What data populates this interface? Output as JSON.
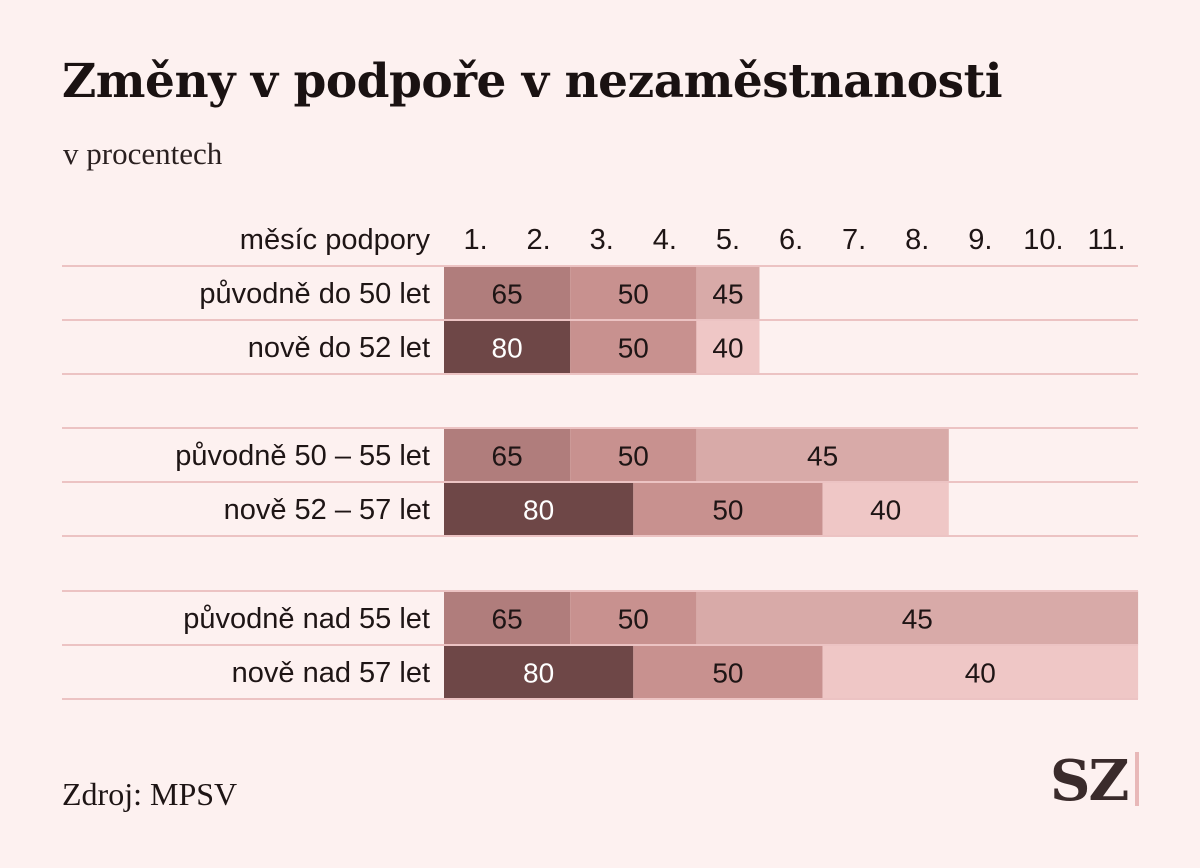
{
  "colors": {
    "background": "#fdf1f0",
    "rule": "#ecc3c3",
    "65": "#b07d7c",
    "80": "#6e4747",
    "50": "#c8918f",
    "45": "#d8aaa8",
    "40": "#efc7c6"
  },
  "chart_data": {
    "type": "table",
    "title": "Změny v podpoře v nezaměstnanosti",
    "subtitle": "v procentech",
    "header_label": "měsíc podpory",
    "months": [
      "1.",
      "2.",
      "3.",
      "4.",
      "5.",
      "6.",
      "7.",
      "8.",
      "9.",
      "10.",
      "11."
    ],
    "groups": [
      {
        "rows": [
          {
            "label": "původně do 50 let",
            "segments": [
              {
                "value": 65,
                "months": 2
              },
              {
                "value": 50,
                "months": 2
              },
              {
                "value": 45,
                "months": 1
              }
            ]
          },
          {
            "label": "nově do 52 let",
            "segments": [
              {
                "value": 80,
                "months": 2
              },
              {
                "value": 50,
                "months": 2
              },
              {
                "value": 40,
                "months": 1
              }
            ]
          }
        ]
      },
      {
        "rows": [
          {
            "label": "původně 50 – 55 let",
            "segments": [
              {
                "value": 65,
                "months": 2
              },
              {
                "value": 50,
                "months": 2
              },
              {
                "value": 45,
                "months": 4
              }
            ]
          },
          {
            "label": "nově 52 – 57 let",
            "segments": [
              {
                "value": 80,
                "months": 3
              },
              {
                "value": 50,
                "months": 3
              },
              {
                "value": 40,
                "months": 2
              }
            ]
          }
        ]
      },
      {
        "rows": [
          {
            "label": "původně nad 55 let",
            "segments": [
              {
                "value": 65,
                "months": 2
              },
              {
                "value": 50,
                "months": 2
              },
              {
                "value": 45,
                "months": 7
              }
            ]
          },
          {
            "label": "nově nad 57 let",
            "segments": [
              {
                "value": 80,
                "months": 3
              },
              {
                "value": 50,
                "months": 3
              },
              {
                "value": 40,
                "months": 5
              }
            ]
          }
        ]
      }
    ]
  },
  "source": "Zdroj: MPSV",
  "logo": "SZ"
}
